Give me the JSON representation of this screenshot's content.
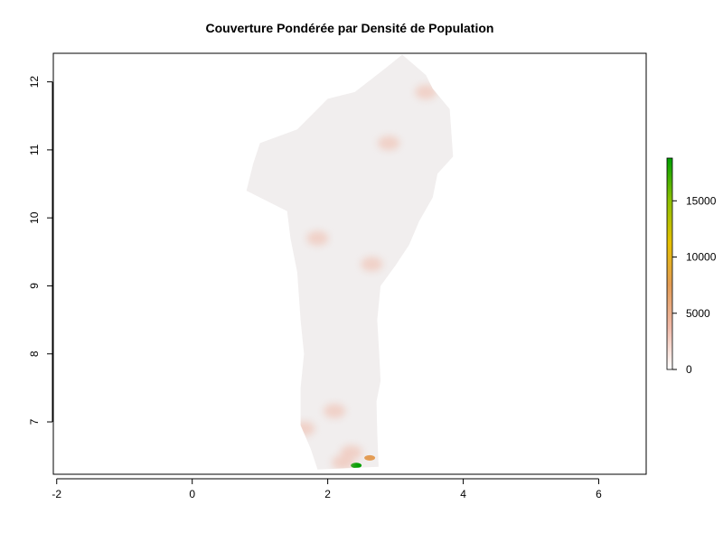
{
  "title": "Couverture Pondérée par Densité de Population",
  "chart_data": {
    "type": "heatmap",
    "title": "Couverture Pondérée par Densité de Population",
    "xlabel": "",
    "ylabel": "",
    "x_ticks": [
      -2,
      0,
      2,
      4,
      6
    ],
    "y_ticks": [
      7,
      8,
      9,
      10,
      11,
      12
    ],
    "xlim": [
      -2.05,
      6.7
    ],
    "ylim": [
      6.23,
      12.42
    ],
    "grid": false,
    "legend": {
      "placement": "right",
      "ticks": [
        0,
        5000,
        10000,
        15000
      ],
      "range": [
        0,
        18800
      ],
      "colors": [
        "#ffffff",
        "#f0b9a8",
        "#e39c55",
        "#e6c000",
        "#8cc000",
        "#00a000"
      ]
    },
    "colors": {
      "background_land": "#f1eeee",
      "low_density": "#f2c8b8",
      "medium_density": "#e8a57a",
      "high_density": "#e6c000",
      "max_density": "#1a9a00"
    },
    "region_outline": [
      [
        1.85,
        6.3
      ],
      [
        2.75,
        6.34
      ],
      [
        2.73,
        6.85
      ],
      [
        2.72,
        7.3
      ],
      [
        2.78,
        7.6
      ],
      [
        2.76,
        8.0
      ],
      [
        2.73,
        8.5
      ],
      [
        2.78,
        9.0
      ],
      [
        3.0,
        9.3
      ],
      [
        3.2,
        9.6
      ],
      [
        3.35,
        9.95
      ],
      [
        3.55,
        10.3
      ],
      [
        3.62,
        10.65
      ],
      [
        3.85,
        10.9
      ],
      [
        3.8,
        11.6
      ],
      [
        3.55,
        11.9
      ],
      [
        3.45,
        12.1
      ],
      [
        3.1,
        12.4
      ],
      [
        2.85,
        12.2
      ],
      [
        2.4,
        11.85
      ],
      [
        2.0,
        11.75
      ],
      [
        1.55,
        11.3
      ],
      [
        1.0,
        11.1
      ],
      [
        0.9,
        10.8
      ],
      [
        0.8,
        10.4
      ],
      [
        1.4,
        10.1
      ],
      [
        1.45,
        9.7
      ],
      [
        1.55,
        9.2
      ],
      [
        1.6,
        8.5
      ],
      [
        1.65,
        8.0
      ],
      [
        1.6,
        7.5
      ],
      [
        1.6,
        6.95
      ],
      [
        1.75,
        6.6
      ]
    ],
    "hotspots": [
      {
        "x": 2.65,
        "y": 9.32,
        "value": 3000
      },
      {
        "x": 2.1,
        "y": 7.16,
        "value": 2500
      },
      {
        "x": 2.35,
        "y": 6.55,
        "value": 3500
      },
      {
        "x": 1.65,
        "y": 6.9,
        "value": 2000
      },
      {
        "x": 2.42,
        "y": 6.36,
        "value": 18000
      },
      {
        "x": 2.62,
        "y": 6.47,
        "value": 9000
      },
      {
        "x": 2.22,
        "y": 6.4,
        "value": 4000
      },
      {
        "x": 1.85,
        "y": 9.7,
        "value": 1500
      },
      {
        "x": 2.9,
        "y": 11.1,
        "value": 1200
      },
      {
        "x": 3.45,
        "y": 11.85,
        "value": 1000
      }
    ]
  }
}
